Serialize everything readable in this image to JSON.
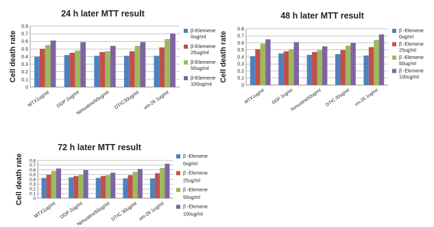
{
  "chart_data": [
    {
      "type": "bar",
      "title": "24 h later MTT result",
      "ylabel": "Cell death rate",
      "ylim": [
        0,
        0.8
      ],
      "yticks": [
        "0",
        "0.1",
        "0.2",
        "0.3",
        "0.4",
        "0.5",
        "0.6",
        "0.7",
        "0.8"
      ],
      "categories": [
        "MTX1ug/ml",
        "DDP 2ug/ml",
        "Nimustine50ug/ml",
        "DTIC30ug/ml",
        "vm-26 1ug/ml"
      ],
      "grid": true,
      "legend_position": "right",
      "series": [
        {
          "name": "β-Elemene 0ug/ml",
          "legend_lines": [
            "β-Elemene",
            "0ug/ml"
          ],
          "color": "#4F81BD",
          "values": [
            0.4,
            0.42,
            0.41,
            0.41,
            0.41
          ]
        },
        {
          "name": "β-Elemene 25ug/ml",
          "legend_lines": [
            "β-Elemene",
            "25ug/ml"
          ],
          "color": "#C0504D",
          "values": [
            0.5,
            0.45,
            0.46,
            0.47,
            0.52
          ]
        },
        {
          "name": "β-Elemene 50ug/ml",
          "legend_lines": [
            "β-Elemene",
            "50ug/ml"
          ],
          "color": "#9BBB59",
          "values": [
            0.55,
            0.48,
            0.47,
            0.54,
            0.63
          ]
        },
        {
          "name": "β-Elemene 100ug/ml",
          "legend_lines": [
            "β-Elemene",
            "100ug/ml"
          ],
          "color": "#8064A2",
          "values": [
            0.61,
            0.59,
            0.54,
            0.59,
            0.7
          ]
        }
      ]
    },
    {
      "type": "bar",
      "title": "48 h later MTT result",
      "ylabel": "Cell death rate",
      "ylim": [
        0,
        0.8
      ],
      "yticks": [
        "0",
        "0.1",
        "0.2",
        "0.3",
        "0.4",
        "0.5",
        "0.6",
        "0.7",
        "0.8"
      ],
      "categories": [
        "MTX1ug/ml",
        "DDP 2ug/ml",
        "Nimustine50ug/ml",
        "DTIC 30ug/ml",
        "vm-26 1ug/ml"
      ],
      "grid": true,
      "legend_position": "right",
      "series": [
        {
          "name": "β-Elemene 0ug/ml",
          "legend_lines": [
            "β -Elemene",
            "0ug/ml"
          ],
          "color": "#4F81BD",
          "values": [
            0.41,
            0.45,
            0.43,
            0.44,
            0.42
          ]
        },
        {
          "name": "β-Elemene 25ug/ml",
          "legend_lines": [
            "β -Elemene",
            "25ug/ml"
          ],
          "color": "#C0504D",
          "values": [
            0.51,
            0.48,
            0.47,
            0.5,
            0.54
          ]
        },
        {
          "name": "β-Elemene 50ug/ml",
          "legend_lines": [
            "β -Elemene",
            "50ug/ml"
          ],
          "color": "#9BBB59",
          "values": [
            0.59,
            0.51,
            0.5,
            0.56,
            0.64
          ]
        },
        {
          "name": "β-Elemene 100ug/ml",
          "legend_lines": [
            "β -Elemene",
            "100ug/ml"
          ],
          "color": "#8064A2",
          "values": [
            0.65,
            0.61,
            0.55,
            0.6,
            0.72
          ]
        }
      ]
    },
    {
      "type": "bar",
      "title": "72 h later MTT result",
      "ylabel": "Cell death rate",
      "ylim": [
        0,
        0.8
      ],
      "yticks": [
        "0",
        "0.1",
        "0.2",
        "0.3",
        "0.4",
        "0.5",
        "0.6",
        "0.7",
        "0.8"
      ],
      "categories": [
        "MTX1ug/ml",
        "DDP 2ug/ml",
        "Nimustine50ug/ml",
        "DTIC 30ug/ml",
        "vm-26 1ug/ml"
      ],
      "grid": true,
      "legend_position": "right",
      "series": [
        {
          "name": "β-Elemene 0ug/ml",
          "legend_lines": [
            "β -Elemene",
            "0ug/ml"
          ],
          "color": "#4F81BD",
          "values": [
            0.43,
            0.44,
            0.43,
            0.42,
            0.42
          ]
        },
        {
          "name": "β-Elemene 25ug/ml",
          "legend_lines": [
            "β -Elemene",
            "25ug/ml"
          ],
          "color": "#C0504D",
          "values": [
            0.5,
            0.47,
            0.47,
            0.49,
            0.53
          ]
        },
        {
          "name": "β-Elemene 50ug/ml",
          "legend_lines": [
            "β -Elemene",
            "50ug/ml"
          ],
          "color": "#9BBB59",
          "values": [
            0.58,
            0.5,
            0.49,
            0.56,
            0.64
          ]
        },
        {
          "name": "β-Elemene 100ug/ml",
          "legend_lines": [
            "β -Elemene",
            "100ug/ml"
          ],
          "color": "#8064A2",
          "values": [
            0.63,
            0.6,
            0.54,
            0.62,
            0.73
          ]
        }
      ]
    }
  ]
}
